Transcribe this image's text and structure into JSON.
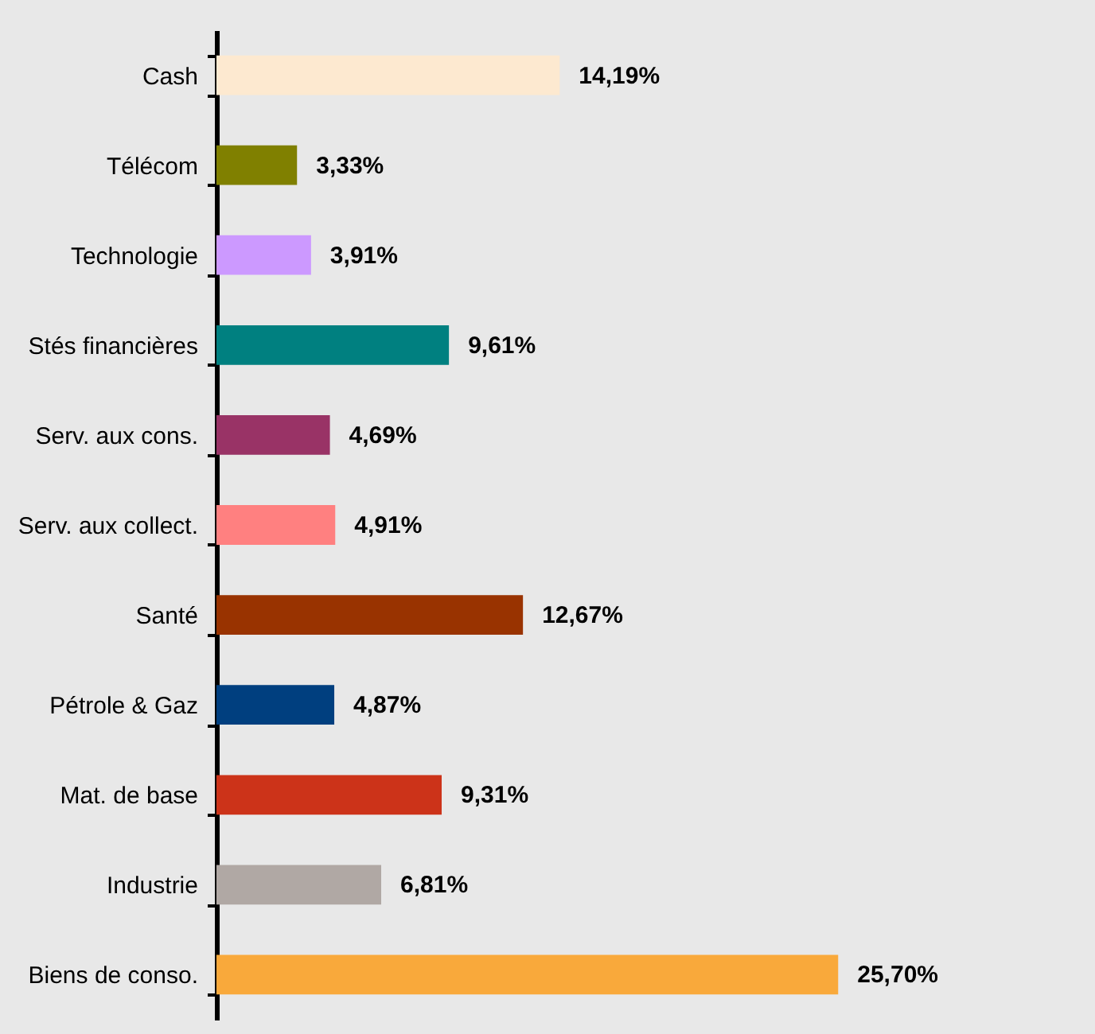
{
  "chart_data": {
    "type": "bar",
    "orientation": "horizontal",
    "categories": [
      "Cash",
      "Télécom",
      "Technologie",
      "Stés financières",
      "Serv. aux cons.",
      "Serv. aux collect.",
      "Santé",
      "Pétrole & Gaz",
      "Mat. de base",
      "Industrie",
      "Biens de conso."
    ],
    "values": [
      14.19,
      3.33,
      3.91,
      9.61,
      4.69,
      4.91,
      12.67,
      4.87,
      9.31,
      6.81,
      25.7
    ],
    "value_labels": [
      "14,19%",
      "3,33%",
      "3,91%",
      "9,61%",
      "4,69%",
      "4,91%",
      "12,67%",
      "4,87%",
      "9,31%",
      "6,81%",
      "25,70%"
    ],
    "colors": [
      "#fde9d0",
      "#808000",
      "#cc99ff",
      "#008080",
      "#993366",
      "#ff8080",
      "#993300",
      "#003f7f",
      "#cc3319",
      "#b0a8a4",
      "#f9a93b"
    ]
  }
}
